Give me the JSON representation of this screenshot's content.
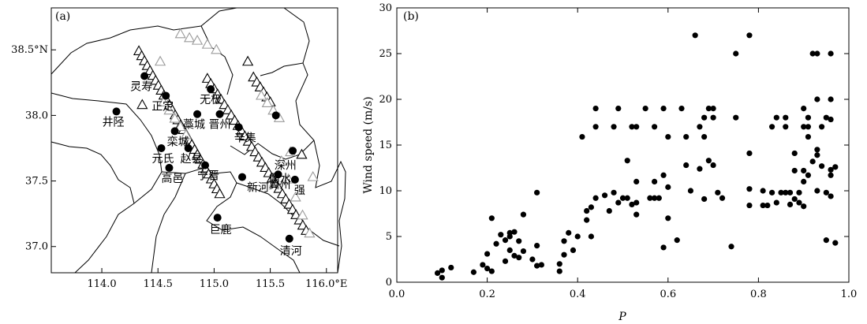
{
  "figure": {
    "panel_a_label": "(a)",
    "panel_b_label": "(b)"
  },
  "chart_data": [
    {
      "type": "map",
      "panel": "(a)",
      "lon_ticks": [
        {
          "v": 114.0,
          "label": "114.0"
        },
        {
          "v": 114.5,
          "label": "114.5"
        },
        {
          "v": 115.0,
          "label": "115.0"
        },
        {
          "v": 115.5,
          "label": "115.5"
        },
        {
          "v": 116.0,
          "label": "116.0°E"
        }
      ],
      "lat_ticks": [
        {
          "v": 37.0,
          "label": "37.0"
        },
        {
          "v": 37.5,
          "label": "37.5"
        },
        {
          "v": 38.0,
          "label": "38.0"
        },
        {
          "v": 38.5,
          "label": "38.5°N"
        }
      ],
      "xlim": [
        113.55,
        116.1
      ],
      "ylim": [
        36.8,
        38.82
      ],
      "stations": [
        {
          "name": "井陉",
          "lon": 114.13,
          "lat": 38.03,
          "ldx": -4,
          "ldy": 18
        },
        {
          "name": "灵寿",
          "lon": 114.38,
          "lat": 38.3,
          "ldx": -4,
          "ldy": 18
        },
        {
          "name": "正定",
          "lon": 114.57,
          "lat": 38.15,
          "ldx": -4,
          "ldy": 18
        },
        {
          "name": "藁城",
          "lon": 114.85,
          "lat": 38.01,
          "ldx": -4,
          "ldy": 18
        },
        {
          "name": "无极",
          "lon": 114.97,
          "lat": 38.2,
          "ldx": 0,
          "ldy": 18
        },
        {
          "name": "晋州",
          "lon": 115.05,
          "lat": 38.01,
          "ldx": 0,
          "ldy": 18
        },
        {
          "name": "辛集",
          "lon": 115.22,
          "lat": 37.91,
          "ldx": 8,
          "ldy": 18
        },
        {
          "name": "栾城",
          "lon": 114.65,
          "lat": 37.88,
          "ldx": 4,
          "ldy": 18
        },
        {
          "name": "元氏",
          "lon": 114.53,
          "lat": 37.75,
          "ldx": 2,
          "ldy": 18
        },
        {
          "name": "赵县",
          "lon": 114.77,
          "lat": 37.75,
          "ldx": 4,
          "ldy": 18
        },
        {
          "name": "高邑",
          "lon": 114.6,
          "lat": 37.6,
          "ldx": 4,
          "ldy": 18
        },
        {
          "name": "宁晋",
          "lon": 114.92,
          "lat": 37.62,
          "ldx": 4,
          "ldy": 18
        },
        {
          "name": "新河",
          "lon": 115.25,
          "lat": 37.53,
          "ldx": 20,
          "ldy": 18
        },
        {
          "name": "冀州",
          "lon": 115.57,
          "lat": 37.55,
          "ldx": 2,
          "ldy": 18
        },
        {
          "name": "衡水",
          "lon": 115.7,
          "lat": 37.73,
          "ldx": -16,
          "ldy": 40
        },
        {
          "name": "深州",
          "lon": 115.55,
          "lat": 38.0,
          "ldx": 12,
          "ldy": 68
        },
        {
          "name": "巨鹿",
          "lon": 115.03,
          "lat": 37.22,
          "ldx": 4,
          "ldy": 20
        },
        {
          "name": "清河",
          "lon": 115.67,
          "lat": 37.06,
          "ldx": 2,
          "ldy": 20
        },
        {
          "name": "强",
          "lon": 115.72,
          "lat": 37.51,
          "ldx": 6,
          "ldy": 18
        }
      ],
      "station_labels": [
        "井陉",
        "灵寿",
        "正定",
        "藁城",
        "无极",
        "晋州",
        "辛集",
        "栾城",
        "元氏",
        "赵县",
        "高邑",
        "宁晋",
        "新河",
        "冀州",
        "衡水",
        "深州",
        "巨鹿",
        "清河",
        "强"
      ],
      "triangle_rows": [
        {
          "style": "black",
          "from": [
            114.33,
            38.49
          ],
          "to": [
            115.05,
            37.4
          ],
          "n": 30
        },
        {
          "style": "black",
          "from": [
            114.94,
            38.28
          ],
          "to": [
            115.82,
            37.12
          ],
          "n": 30
        },
        {
          "style": "black",
          "from": [
            115.35,
            38.29
          ],
          "to": [
            115.5,
            38.1
          ],
          "n": 6
        },
        {
          "style": "gray",
          "from": [
            114.55,
            38.1
          ],
          "to": [
            114.75,
            37.85
          ],
          "n": 5
        },
        {
          "style": "gray",
          "from": [
            115.42,
            38.15
          ],
          "to": [
            115.58,
            37.98
          ],
          "n": 4
        },
        {
          "style": "gray",
          "from": [
            115.6,
            37.65
          ],
          "to": [
            115.85,
            37.1
          ],
          "n": 5
        }
      ],
      "extra_triangles": [
        {
          "style": "black",
          "lon": 114.36,
          "lat": 38.08
        },
        {
          "style": "black",
          "lon": 115.3,
          "lat": 38.41
        },
        {
          "style": "black",
          "lon": 115.78,
          "lat": 37.7
        },
        {
          "style": "gray",
          "lon": 114.7,
          "lat": 38.62
        },
        {
          "style": "gray",
          "lon": 114.78,
          "lat": 38.59
        },
        {
          "style": "gray",
          "lon": 114.85,
          "lat": 38.57
        },
        {
          "style": "gray",
          "lon": 114.94,
          "lat": 38.54
        },
        {
          "style": "gray",
          "lon": 115.02,
          "lat": 38.5
        },
        {
          "style": "gray",
          "lon": 114.52,
          "lat": 38.41
        },
        {
          "style": "gray",
          "lon": 115.68,
          "lat": 37.72
        },
        {
          "style": "gray",
          "lon": 115.88,
          "lat": 37.53
        }
      ]
    },
    {
      "type": "scatter",
      "panel": "(b)",
      "xlabel": "P",
      "ylabel": "Wind speed (m/s)",
      "xlim": [
        0.0,
        1.0
      ],
      "ylim": [
        0,
        30
      ],
      "xticks": [
        "0.0",
        "0.2",
        "0.4",
        "0.6",
        "0.8",
        "1.0"
      ],
      "yticks": [
        "0",
        "5",
        "10",
        "15",
        "20",
        "25",
        "30"
      ],
      "points": [
        [
          0.09,
          1.0
        ],
        [
          0.1,
          0.5
        ],
        [
          0.1,
          1.3
        ],
        [
          0.12,
          1.6
        ],
        [
          0.17,
          1.1
        ],
        [
          0.19,
          1.9
        ],
        [
          0.2,
          1.5
        ],
        [
          0.2,
          3.1
        ],
        [
          0.21,
          1.2
        ],
        [
          0.21,
          7.0
        ],
        [
          0.22,
          4.2
        ],
        [
          0.23,
          5.2
        ],
        [
          0.24,
          2.3
        ],
        [
          0.24,
          4.6
        ],
        [
          0.25,
          5.4
        ],
        [
          0.25,
          5.0
        ],
        [
          0.25,
          3.5
        ],
        [
          0.26,
          2.9
        ],
        [
          0.26,
          5.5
        ],
        [
          0.27,
          2.7
        ],
        [
          0.27,
          4.5
        ],
        [
          0.28,
          3.4
        ],
        [
          0.28,
          7.4
        ],
        [
          0.3,
          2.5
        ],
        [
          0.31,
          1.8
        ],
        [
          0.31,
          4.0
        ],
        [
          0.31,
          9.8
        ],
        [
          0.32,
          1.9
        ],
        [
          0.36,
          1.2
        ],
        [
          0.36,
          2.0
        ],
        [
          0.37,
          3.0
        ],
        [
          0.37,
          4.5
        ],
        [
          0.38,
          5.4
        ],
        [
          0.39,
          3.5
        ],
        [
          0.4,
          5.0
        ],
        [
          0.41,
          15.9
        ],
        [
          0.42,
          6.8
        ],
        [
          0.42,
          7.8
        ],
        [
          0.43,
          5.0
        ],
        [
          0.43,
          8.2
        ],
        [
          0.44,
          9.2
        ],
        [
          0.44,
          17.0
        ],
        [
          0.44,
          19.0
        ],
        [
          0.46,
          9.5
        ],
        [
          0.47,
          7.8
        ],
        [
          0.48,
          9.8
        ],
        [
          0.48,
          17.0
        ],
        [
          0.49,
          8.7
        ],
        [
          0.49,
          19.0
        ],
        [
          0.5,
          9.2
        ],
        [
          0.51,
          9.2
        ],
        [
          0.51,
          13.3
        ],
        [
          0.52,
          8.5
        ],
        [
          0.52,
          17.0
        ],
        [
          0.53,
          7.4
        ],
        [
          0.53,
          8.7
        ],
        [
          0.53,
          11.0
        ],
        [
          0.53,
          17.0
        ],
        [
          0.55,
          19.0
        ],
        [
          0.56,
          9.2
        ],
        [
          0.57,
          9.2
        ],
        [
          0.57,
          11.0
        ],
        [
          0.57,
          17.0
        ],
        [
          0.58,
          9.2
        ],
        [
          0.59,
          3.8
        ],
        [
          0.59,
          11.7
        ],
        [
          0.59,
          19.0
        ],
        [
          0.6,
          7.0
        ],
        [
          0.6,
          10.4
        ],
        [
          0.6,
          15.9
        ],
        [
          0.62,
          4.6
        ],
        [
          0.63,
          19.0
        ],
        [
          0.64,
          12.8
        ],
        [
          0.64,
          15.9
        ],
        [
          0.65,
          10.0
        ],
        [
          0.66,
          27.0
        ],
        [
          0.67,
          12.4
        ],
        [
          0.67,
          17.0
        ],
        [
          0.68,
          9.1
        ],
        [
          0.68,
          15.9
        ],
        [
          0.68,
          18.0
        ],
        [
          0.69,
          13.3
        ],
        [
          0.69,
          19.0
        ],
        [
          0.7,
          12.8
        ],
        [
          0.7,
          18.0
        ],
        [
          0.7,
          19.0
        ],
        [
          0.71,
          9.8
        ],
        [
          0.72,
          9.2
        ],
        [
          0.74,
          3.9
        ],
        [
          0.75,
          18.0
        ],
        [
          0.75,
          25.0
        ],
        [
          0.78,
          27.0
        ],
        [
          0.78,
          14.1
        ],
        [
          0.78,
          10.2
        ],
        [
          0.78,
          8.4
        ],
        [
          0.81,
          8.4
        ],
        [
          0.81,
          10.0
        ],
        [
          0.82,
          8.4
        ],
        [
          0.83,
          9.8
        ],
        [
          0.83,
          17.0
        ],
        [
          0.84,
          8.7
        ],
        [
          0.84,
          18.0
        ],
        [
          0.85,
          9.8
        ],
        [
          0.86,
          9.8
        ],
        [
          0.86,
          17.0
        ],
        [
          0.86,
          18.0
        ],
        [
          0.87,
          8.5
        ],
        [
          0.87,
          9.8
        ],
        [
          0.88,
          9.1
        ],
        [
          0.88,
          12.2
        ],
        [
          0.88,
          14.1
        ],
        [
          0.89,
          8.7
        ],
        [
          0.89,
          9.8
        ],
        [
          0.9,
          8.3
        ],
        [
          0.9,
          11.0
        ],
        [
          0.9,
          12.2
        ],
        [
          0.9,
          17.0
        ],
        [
          0.9,
          19.0
        ],
        [
          0.91,
          11.7
        ],
        [
          0.91,
          15.9
        ],
        [
          0.91,
          17.0
        ],
        [
          0.91,
          18.0
        ],
        [
          0.92,
          13.2
        ],
        [
          0.92,
          25.0
        ],
        [
          0.93,
          10.0
        ],
        [
          0.93,
          13.9
        ],
        [
          0.93,
          14.5
        ],
        [
          0.93,
          20.0
        ],
        [
          0.93,
          25.0
        ],
        [
          0.94,
          12.7
        ],
        [
          0.94,
          17.0
        ],
        [
          0.95,
          4.6
        ],
        [
          0.95,
          9.8
        ],
        [
          0.95,
          18.0
        ],
        [
          0.96,
          9.4
        ],
        [
          0.96,
          11.7
        ],
        [
          0.96,
          12.3
        ],
        [
          0.96,
          17.8
        ],
        [
          0.96,
          20.0
        ],
        [
          0.96,
          25.0
        ],
        [
          0.97,
          4.3
        ],
        [
          0.97,
          12.6
        ]
      ]
    }
  ]
}
